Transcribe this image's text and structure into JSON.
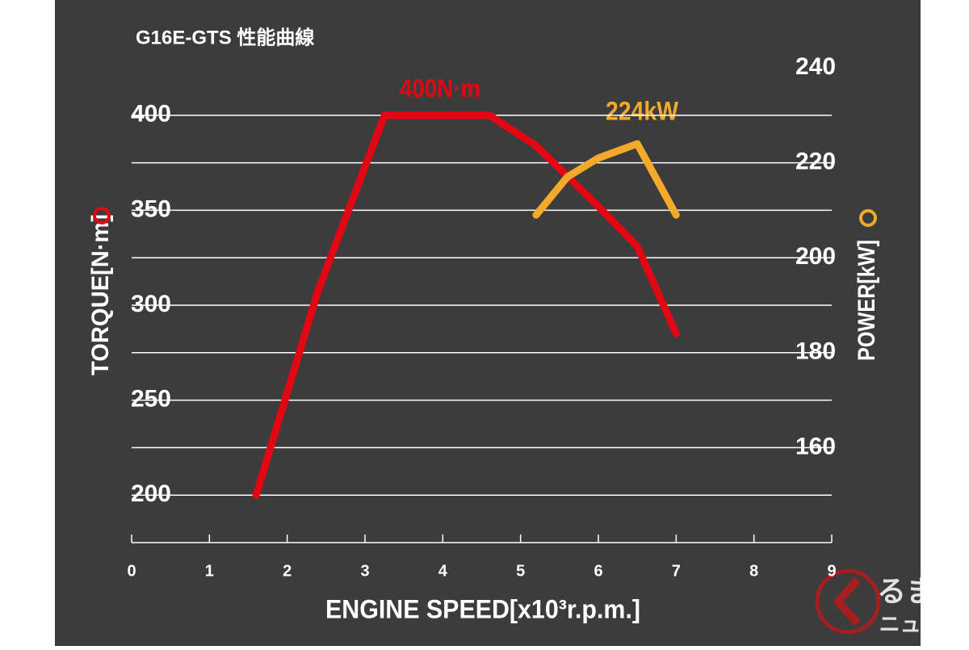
{
  "chart_data": {
    "type": "line",
    "title": "G16E-GTS 性能曲線",
    "x_label": "ENGINE SPEED[x10³r.p.m.]",
    "y_label": "TORQUE[N·m]",
    "y2_label": "POWER[kW]",
    "xlim": [
      0,
      9
    ],
    "xticks": [
      0,
      1,
      2,
      3,
      4,
      5,
      6,
      7,
      8,
      9
    ],
    "ylim": [
      175,
      425
    ],
    "yticks": [
      200,
      250,
      300,
      350,
      400
    ],
    "ygrid": [
      200,
      225,
      250,
      275,
      300,
      325,
      350,
      375,
      400
    ],
    "y2lim": [
      140,
      240
    ],
    "y2ticks": [
      160,
      180,
      200,
      220,
      240
    ],
    "series": [
      {
        "name": "TORQUE",
        "color": "#e30613",
        "x": [
          1.6,
          2.4,
          3.25,
          4.6,
          5.2,
          6.0,
          6.5,
          7.0
        ],
        "values": [
          200,
          308,
          400,
          400,
          384,
          352,
          331,
          285
        ]
      },
      {
        "name": "POWER",
        "color": "#f3a92a",
        "axis": "y2",
        "x": [
          5.2,
          5.6,
          6.0,
          6.5,
          7.0
        ],
        "values": [
          209,
          217,
          221,
          224,
          209
        ]
      }
    ],
    "annotations": [
      "400N·m",
      "224kW"
    ]
  },
  "watermark": {
    "top": "るまの",
    "bottom": "ニュース"
  }
}
